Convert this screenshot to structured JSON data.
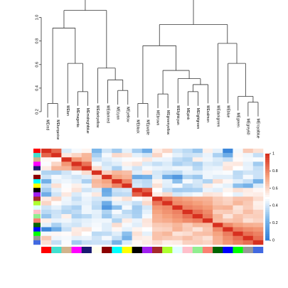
{
  "chart_data": [
    {
      "type": "dendrogram",
      "title": "",
      "ylabel": "",
      "ylim": [
        0.2,
        1.1
      ],
      "yticks": [
        "0.2",
        "0.4",
        "0.6",
        "0.8",
        "1.0"
      ],
      "leaves": [
        "MEred",
        "MEturquoise",
        "MEtan",
        "MEmagenta",
        "MEmidnightblue",
        "MEdarkyellow",
        "MEdarkred",
        "MEcyan",
        "MEyellow",
        "MEblack",
        "MEpurple",
        "MEbrown",
        "MEgreenyellow",
        "MElightcyan",
        "MEpink",
        "MElightgreen",
        "MEsalmon",
        "MEdarkgreen",
        "MEblue",
        "MEgreen",
        "MEgrey60",
        "MEroyalblue"
      ],
      "merges": [
        {
          "a": 0,
          "b": 1,
          "height": 0.27
        },
        {
          "a": 3,
          "b": 4,
          "height": 0.37
        },
        {
          "a": "m1",
          "b": 2,
          "height": 0.61
        },
        {
          "a": "m0",
          "b": "m2",
          "height": 0.91
        },
        {
          "a": 7,
          "b": 8,
          "height": 0.38
        },
        {
          "a": 6,
          "b": "m4",
          "height": 0.47
        },
        {
          "a": 5,
          "b": "m5",
          "height": 0.57
        },
        {
          "a": "m3",
          "b": "m6",
          "height": 1.06
        },
        {
          "a": 9,
          "b": 10,
          "height": 0.27
        },
        {
          "a": 11,
          "b": 12,
          "height": 0.35
        },
        {
          "a": 14,
          "b": 15,
          "height": 0.37
        },
        {
          "a": "m10",
          "b": 16,
          "height": 0.43
        },
        {
          "a": 13,
          "b": "m11",
          "height": 0.48
        },
        {
          "a": "m9",
          "b": "m12",
          "height": 0.55
        },
        {
          "a": "m8",
          "b": "m13",
          "height": 0.76
        },
        {
          "a": 20,
          "b": 21,
          "height": 0.28
        },
        {
          "a": 19,
          "b": "m15",
          "height": 0.33
        },
        {
          "a": 18,
          "b": "m16",
          "height": 0.61
        },
        {
          "a": 17,
          "b": "m17",
          "height": 0.78
        },
        {
          "a": "m14",
          "b": "m18",
          "height": 0.94
        },
        {
          "a": "m7",
          "b": "m19",
          "height": 1.18
        }
      ]
    },
    {
      "type": "heatmap",
      "colorbar": {
        "min": 0,
        "max": 1,
        "ticks": [
          "0",
          "0.2",
          "0.4",
          "0.6",
          "0.8",
          "1"
        ],
        "colors": [
          "#2c7bd6",
          "#7cb7ea",
          "#ffffff",
          "#f5a07c",
          "#d7301f"
        ]
      },
      "module_colors": [
        "#ff0000",
        "#40e0d0",
        "#d2b48c",
        "#ff00ff",
        "#191970",
        "#fffff0",
        "#8b0000",
        "#00ffff",
        "#ffff00",
        "#000000",
        "#a020f0",
        "#a52a2a",
        "#adff2f",
        "#e0ffff",
        "#ffc0cb",
        "#90ee90",
        "#fa8072",
        "#006400",
        "#0000ff",
        "#00ff00",
        "#999999",
        "#4169e1"
      ],
      "values": [
        [
          1.0,
          0.88,
          0.43,
          0.48,
          0.53,
          0.25,
          0.41,
          0.32,
          0.45,
          0.33,
          0.21,
          0.55,
          0.61,
          0.41,
          0.37,
          0.3,
          0.54,
          0.45,
          0.05,
          0.48,
          0.64,
          0.58
        ],
        [
          0.88,
          1.0,
          0.56,
          0.61,
          0.69,
          0.33,
          0.48,
          0.6,
          0.58,
          0.45,
          0.41,
          0.61,
          0.51,
          0.45,
          0.4,
          0.41,
          0.46,
          0.34,
          0.21,
          0.52,
          0.47,
          0.39
        ],
        [
          0.52,
          0.51,
          1.0,
          0.77,
          0.7,
          0.4,
          0.44,
          0.47,
          0.49,
          0.51,
          0.56,
          0.47,
          0.46,
          0.38,
          0.35,
          0.54,
          0.47,
          0.43,
          0.39,
          0.51,
          0.48,
          0.49
        ],
        [
          0.49,
          0.61,
          0.77,
          1.0,
          0.85,
          0.48,
          0.41,
          0.44,
          0.54,
          0.57,
          0.43,
          0.39,
          0.43,
          0.34,
          0.38,
          0.34,
          0.43,
          0.41,
          0.55,
          0.56,
          0.45,
          0.32
        ],
        [
          0.55,
          0.69,
          0.7,
          0.85,
          1.0,
          0.59,
          0.44,
          0.34,
          0.47,
          0.41,
          0.48,
          0.46,
          0.45,
          0.47,
          0.47,
          0.37,
          0.45,
          0.46,
          0.57,
          0.5,
          0.46,
          0.39
        ],
        [
          0.35,
          0.34,
          0.41,
          0.48,
          0.59,
          1.0,
          0.62,
          0.69,
          0.67,
          0.44,
          0.56,
          0.42,
          0.39,
          0.37,
          0.45,
          0.44,
          0.47,
          0.48,
          0.49,
          0.37,
          0.41,
          0.4
        ],
        [
          0.41,
          0.48,
          0.44,
          0.41,
          0.44,
          0.62,
          1.0,
          0.74,
          0.7,
          0.19,
          0.22,
          0.43,
          0.21,
          0.12,
          0.35,
          0.31,
          0.47,
          0.44,
          0.44,
          0.38,
          0.48,
          0.4
        ],
        [
          0.22,
          0.45,
          0.47,
          0.44,
          0.34,
          0.69,
          0.74,
          1.0,
          0.81,
          0.4,
          0.37,
          0.53,
          0.45,
          0.28,
          0.48,
          0.42,
          0.35,
          0.59,
          0.52,
          0.44,
          0.39,
          0.23
        ],
        [
          0.4,
          0.58,
          0.49,
          0.54,
          0.47,
          0.67,
          0.7,
          0.81,
          1.0,
          0.42,
          0.38,
          0.58,
          0.44,
          0.48,
          0.37,
          0.41,
          0.55,
          0.48,
          0.45,
          0.28,
          0.23,
          0.43
        ],
        [
          0.33,
          0.45,
          0.51,
          0.57,
          0.41,
          0.44,
          0.19,
          0.4,
          0.42,
          1.0,
          0.89,
          0.5,
          0.39,
          0.32,
          0.33,
          0.34,
          0.46,
          0.44,
          0.53,
          0.58,
          0.55,
          0.52
        ],
        [
          0.21,
          0.41,
          0.56,
          0.43,
          0.48,
          0.56,
          0.22,
          0.37,
          0.38,
          0.89,
          1.0,
          0.55,
          0.6,
          0.42,
          0.45,
          0.48,
          0.57,
          0.56,
          0.5,
          0.45,
          0.54,
          0.55
        ],
        [
          0.55,
          0.61,
          0.47,
          0.39,
          0.46,
          0.42,
          0.43,
          0.53,
          0.58,
          0.5,
          0.55,
          1.0,
          0.85,
          0.77,
          0.74,
          0.71,
          0.7,
          0.64,
          0.61,
          0.66,
          0.66,
          0.59
        ],
        [
          0.61,
          0.51,
          0.46,
          0.43,
          0.45,
          0.39,
          0.21,
          0.45,
          0.44,
          0.39,
          0.6,
          0.85,
          1.0,
          0.8,
          0.78,
          0.75,
          0.72,
          0.65,
          0.62,
          0.69,
          0.64,
          0.54
        ],
        [
          0.41,
          0.45,
          0.38,
          0.34,
          0.47,
          0.37,
          0.12,
          0.28,
          0.48,
          0.32,
          0.42,
          0.77,
          0.8,
          1.0,
          0.82,
          0.79,
          0.76,
          0.69,
          0.7,
          0.57,
          0.63,
          0.55
        ],
        [
          0.37,
          0.4,
          0.35,
          0.38,
          0.47,
          0.45,
          0.35,
          0.48,
          0.37,
          0.33,
          0.45,
          0.74,
          0.78,
          0.82,
          1.0,
          0.86,
          0.8,
          0.63,
          0.64,
          0.59,
          0.67,
          0.62
        ],
        [
          0.3,
          0.41,
          0.54,
          0.34,
          0.37,
          0.44,
          0.31,
          0.42,
          0.41,
          0.34,
          0.48,
          0.71,
          0.75,
          0.79,
          0.86,
          1.0,
          0.83,
          0.69,
          0.57,
          0.66,
          0.62,
          0.63
        ],
        [
          0.54,
          0.46,
          0.47,
          0.43,
          0.45,
          0.47,
          0.47,
          0.35,
          0.55,
          0.46,
          0.57,
          0.7,
          0.72,
          0.76,
          0.8,
          0.83,
          1.0,
          0.68,
          0.65,
          0.67,
          0.58,
          0.61
        ],
        [
          0.45,
          0.34,
          0.43,
          0.41,
          0.46,
          0.48,
          0.44,
          0.59,
          0.48,
          0.44,
          0.56,
          0.64,
          0.65,
          0.69,
          0.63,
          0.69,
          0.68,
          1.0,
          0.8,
          0.74,
          0.71,
          0.7
        ],
        [
          0.05,
          0.21,
          0.39,
          0.55,
          0.57,
          0.49,
          0.44,
          0.52,
          0.45,
          0.53,
          0.5,
          0.61,
          0.62,
          0.7,
          0.64,
          0.57,
          0.65,
          0.8,
          1.0,
          0.83,
          0.79,
          0.77
        ],
        [
          0.48,
          0.52,
          0.51,
          0.56,
          0.5,
          0.37,
          0.38,
          0.44,
          0.28,
          0.58,
          0.45,
          0.66,
          0.69,
          0.57,
          0.59,
          0.66,
          0.67,
          0.74,
          0.83,
          1.0,
          0.86,
          0.82
        ],
        [
          0.64,
          0.47,
          0.48,
          0.45,
          0.46,
          0.41,
          0.48,
          0.39,
          0.23,
          0.55,
          0.54,
          0.66,
          0.64,
          0.63,
          0.67,
          0.62,
          0.58,
          0.71,
          0.79,
          0.86,
          1.0,
          0.86
        ],
        [
          0.58,
          0.39,
          0.49,
          0.32,
          0.39,
          0.4,
          0.4,
          0.23,
          0.43,
          0.52,
          0.55,
          0.59,
          0.54,
          0.55,
          0.62,
          0.63,
          0.61,
          0.7,
          0.77,
          0.82,
          0.86,
          1.0
        ]
      ]
    }
  ]
}
